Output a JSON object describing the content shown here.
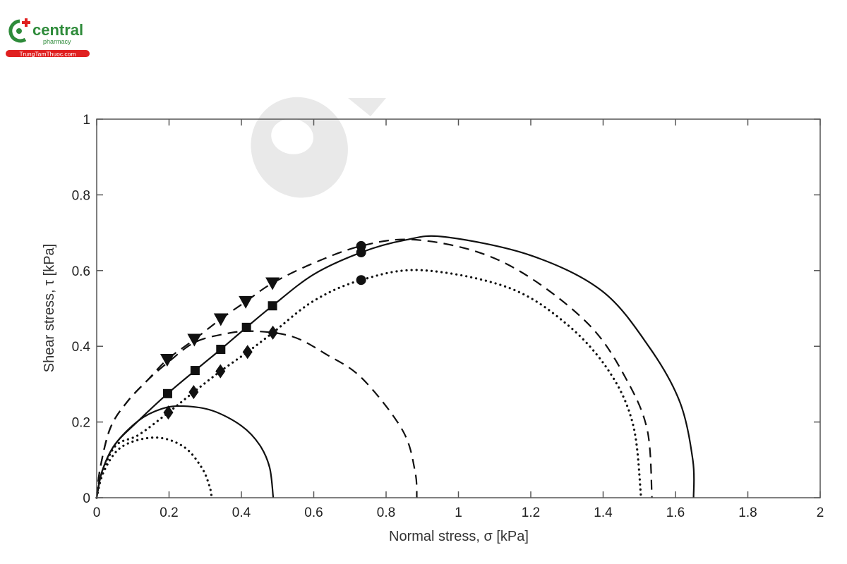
{
  "logo": {
    "brand": "central",
    "sub": "pharmacy",
    "site": "TrungTamThuoc.com",
    "green": "#2e8b3a",
    "red": "#e02020"
  },
  "chart_data": {
    "type": "line",
    "title": "",
    "xlabel": "Normal stress, σ [kPa]",
    "ylabel": "Shear stress, τ [kPa]",
    "xlim": [
      0,
      2
    ],
    "ylim": [
      0,
      1
    ],
    "xticks": [
      "0",
      "0.2",
      "0.4",
      "0.6",
      "0.8",
      "1",
      "1.2",
      "1.4",
      "1.6",
      "1.8",
      "2"
    ],
    "yticks": [
      "0",
      "0.2",
      "0.4",
      "0.6",
      "0.8",
      "1"
    ],
    "grid": false,
    "curves": [
      {
        "style": "solid",
        "points": [
          [
            0,
            0
          ],
          [
            0.015,
            0.07
          ],
          [
            0.05,
            0.14
          ],
          [
            0.116,
            0.204
          ],
          [
            0.196,
            0.275
          ],
          [
            0.272,
            0.336
          ],
          [
            0.343,
            0.392
          ],
          [
            0.414,
            0.45
          ],
          [
            0.486,
            0.507
          ],
          [
            0.6,
            0.59
          ],
          [
            0.731,
            0.648
          ],
          [
            0.85,
            0.68
          ],
          [
            0.962,
            0.689
          ],
          [
            1.2,
            0.64
          ],
          [
            1.397,
            0.546
          ],
          [
            1.528,
            0.397
          ],
          [
            1.612,
            0.253
          ],
          [
            1.648,
            0.099
          ],
          [
            1.65,
            0
          ]
        ]
      },
      {
        "style": "solid",
        "points": [
          [
            0,
            0
          ],
          [
            0.015,
            0.07
          ],
          [
            0.05,
            0.14
          ],
          [
            0.116,
            0.204
          ],
          [
            0.18,
            0.235
          ],
          [
            0.24,
            0.242
          ],
          [
            0.32,
            0.23
          ],
          [
            0.4,
            0.19
          ],
          [
            0.45,
            0.14
          ],
          [
            0.478,
            0.08
          ],
          [
            0.488,
            0
          ]
        ]
      },
      {
        "style": "dashed",
        "points": [
          [
            0,
            0
          ],
          [
            0.01,
            0.08
          ],
          [
            0.038,
            0.185
          ],
          [
            0.084,
            0.253
          ],
          [
            0.14,
            0.31
          ],
          [
            0.195,
            0.365
          ],
          [
            0.27,
            0.418
          ],
          [
            0.343,
            0.472
          ],
          [
            0.412,
            0.518
          ],
          [
            0.486,
            0.567
          ],
          [
            0.6,
            0.62
          ],
          [
            0.731,
            0.665
          ],
          [
            0.87,
            0.682
          ],
          [
            1.05,
            0.65
          ],
          [
            1.202,
            0.579
          ],
          [
            1.366,
            0.452
          ],
          [
            1.463,
            0.315
          ],
          [
            1.522,
            0.179
          ],
          [
            1.535,
            0
          ]
        ]
      },
      {
        "style": "dashed",
        "points": [
          [
            0,
            0
          ],
          [
            0.01,
            0.08
          ],
          [
            0.038,
            0.185
          ],
          [
            0.084,
            0.253
          ],
          [
            0.14,
            0.31
          ],
          [
            0.2,
            0.36
          ],
          [
            0.27,
            0.41
          ],
          [
            0.35,
            0.432
          ],
          [
            0.43,
            0.44
          ],
          [
            0.54,
            0.426
          ],
          [
            0.636,
            0.378
          ],
          [
            0.734,
            0.315
          ],
          [
            0.845,
            0.179
          ],
          [
            0.88,
            0.07
          ],
          [
            0.885,
            0
          ]
        ]
      },
      {
        "style": "dotted",
        "points": [
          [
            0,
            0
          ],
          [
            0.01,
            0.05
          ],
          [
            0.051,
            0.136
          ],
          [
            0.116,
            0.166
          ],
          [
            0.198,
            0.225
          ],
          [
            0.268,
            0.279
          ],
          [
            0.342,
            0.334
          ],
          [
            0.417,
            0.385
          ],
          [
            0.487,
            0.436
          ],
          [
            0.6,
            0.52
          ],
          [
            0.731,
            0.575
          ],
          [
            0.898,
            0.601
          ],
          [
            1.138,
            0.555
          ],
          [
            1.3,
            0.458
          ],
          [
            1.417,
            0.333
          ],
          [
            1.483,
            0.192
          ],
          [
            1.505,
            0
          ]
        ]
      },
      {
        "style": "dotted",
        "points": [
          [
            0,
            0
          ],
          [
            0.02,
            0.07
          ],
          [
            0.07,
            0.135
          ],
          [
            0.162,
            0.159
          ],
          [
            0.24,
            0.135
          ],
          [
            0.29,
            0.08
          ],
          [
            0.312,
            0.03
          ],
          [
            0.318,
            0
          ]
        ]
      }
    ],
    "markers": [
      {
        "shape": "triangle-down",
        "points": [
          [
            0.195,
            0.365
          ],
          [
            0.27,
            0.418
          ],
          [
            0.343,
            0.472
          ],
          [
            0.412,
            0.518
          ],
          [
            0.486,
            0.567
          ]
        ]
      },
      {
        "shape": "square",
        "points": [
          [
            0.196,
            0.275
          ],
          [
            0.272,
            0.336
          ],
          [
            0.343,
            0.392
          ],
          [
            0.414,
            0.45
          ],
          [
            0.486,
            0.507
          ]
        ]
      },
      {
        "shape": "diamond",
        "points": [
          [
            0.198,
            0.225
          ],
          [
            0.268,
            0.279
          ],
          [
            0.342,
            0.334
          ],
          [
            0.417,
            0.385
          ],
          [
            0.487,
            0.436
          ]
        ]
      },
      {
        "shape": "circle",
        "points": [
          [
            0.731,
            0.665
          ],
          [
            0.731,
            0.648
          ],
          [
            0.731,
            0.575
          ]
        ]
      }
    ],
    "line_color": "#111111"
  }
}
